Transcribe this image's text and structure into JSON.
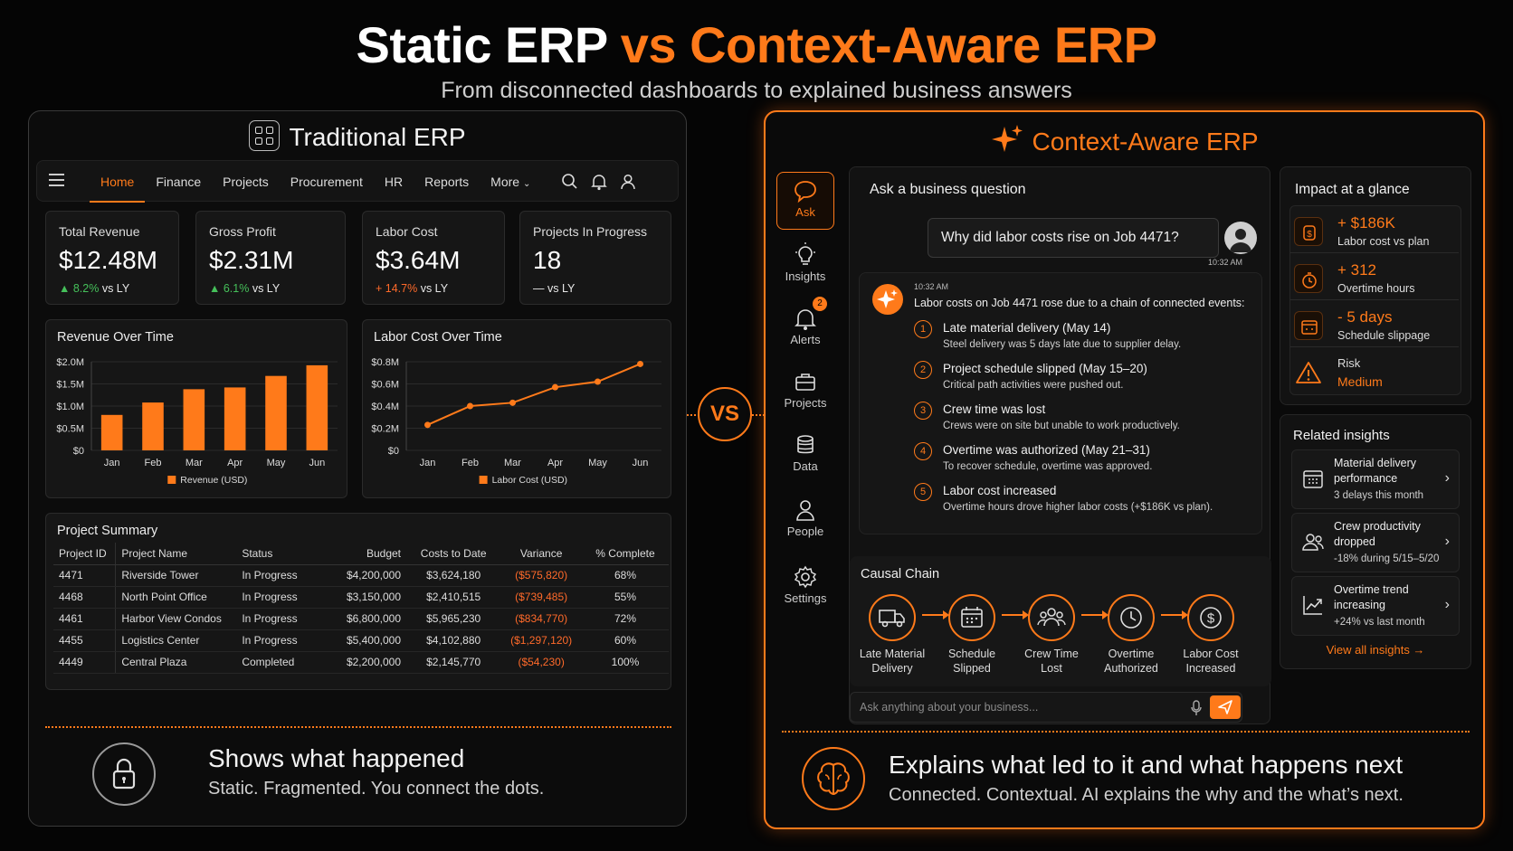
{
  "header": {
    "title_left": "Static ERP",
    "title_vs": "vs",
    "title_right": "Context-Aware ERP",
    "subtitle": "From disconnected dashboards to explained business answers"
  },
  "left": {
    "title": "Traditional ERP",
    "nav": [
      "Home",
      "Finance",
      "Projects",
      "Procurement",
      "HR",
      "Reports",
      "More"
    ],
    "nav_active": "Home",
    "kpis": [
      {
        "label": "Total Revenue",
        "value": "$12.48M",
        "change": "▲ 8.2%",
        "suffix": " vs LY"
      },
      {
        "label": "Gross Profit",
        "value": "$2.31M",
        "change": "▲ 6.1%",
        "suffix": " vs LY"
      },
      {
        "label": "Labor Cost",
        "value": "$3.64M",
        "change": "+ 14.7%",
        "suffix": " vs LY"
      },
      {
        "label": "Projects In Progress",
        "value": "18",
        "change": "—",
        "suffix": " vs LY"
      }
    ],
    "revenue_chart": {
      "title": "Revenue Over Time",
      "legend": "Revenue (USD)"
    },
    "labor_chart": {
      "title": "Labor Cost Over Time",
      "legend": "Labor Cost (USD)"
    },
    "project_summary": {
      "title": "Project Summary",
      "columns": [
        "Project ID",
        "Project Name",
        "Status",
        "Budget",
        "Costs to Date",
        "Variance",
        "% Complete"
      ],
      "rows": [
        [
          "4471",
          "Riverside Tower",
          "In Progress",
          "$4,200,000",
          "$3,624,180",
          "($575,820)",
          "68%"
        ],
        [
          "4468",
          "North Point Office",
          "In Progress",
          "$3,150,000",
          "$2,410,515",
          "($739,485)",
          "55%"
        ],
        [
          "4461",
          "Harbor View Condos",
          "In Progress",
          "$6,800,000",
          "$5,965,230",
          "($834,770)",
          "72%"
        ],
        [
          "4455",
          "Logistics Center",
          "In Progress",
          "$5,400,000",
          "$4,102,880",
          "($1,297,120)",
          "60%"
        ],
        [
          "4449",
          "Central Plaza",
          "Completed",
          "$2,200,000",
          "$2,145,770",
          "($54,230)",
          "100%"
        ]
      ]
    },
    "bottom_title": "Shows what happened",
    "bottom_sub": "Static. Fragmented. You connect the dots."
  },
  "vs": "VS",
  "right": {
    "title": "Context-Aware ERP",
    "sidebar": [
      {
        "label": "Ask",
        "icon": "chat-icon"
      },
      {
        "label": "Insights",
        "icon": "lightbulb-icon"
      },
      {
        "label": "Alerts",
        "icon": "bell-icon",
        "badge": "2"
      },
      {
        "label": "Projects",
        "icon": "briefcase-icon"
      },
      {
        "label": "Data",
        "icon": "database-icon"
      },
      {
        "label": "People",
        "icon": "person-icon"
      },
      {
        "label": "Settings",
        "icon": "gear-icon"
      }
    ],
    "ask": {
      "title": "Ask a business question",
      "question": "Why did labor costs rise on Job 4471?",
      "q_time": "10:32 AM",
      "a_time": "10:32 AM",
      "answer_intro": "Labor costs on Job 4471 rose due to a chain of connected events:",
      "steps": [
        {
          "n": "1",
          "h": "Late material delivery (May 14)",
          "d": "Steel delivery was 5 days late due to supplier delay."
        },
        {
          "n": "2",
          "h": "Project schedule slipped (May 15–20)",
          "d": "Critical path activities were pushed out."
        },
        {
          "n": "3",
          "h": "Crew time was lost",
          "d": "Crews were on site but unable to work productively."
        },
        {
          "n": "4",
          "h": "Overtime was authorized (May 21–31)",
          "d": "To recover schedule, overtime was approved."
        },
        {
          "n": "5",
          "h": "Labor cost increased",
          "d": "Overtime hours drove higher labor costs (+$186K vs plan)."
        }
      ],
      "causal_title": "Causal Chain",
      "causal": [
        {
          "l1": "Late Material",
          "l2": "Delivery",
          "icon": "truck-icon"
        },
        {
          "l1": "Schedule",
          "l2": "Slipped",
          "icon": "calendar-icon"
        },
        {
          "l1": "Crew Time",
          "l2": "Lost",
          "icon": "crew-icon"
        },
        {
          "l1": "Overtime",
          "l2": "Authorized",
          "icon": "clock-icon"
        },
        {
          "l1": "Labor Cost",
          "l2": "Increased",
          "icon": "dollar-icon"
        }
      ],
      "input_placeholder": "Ask anything about your business..."
    },
    "impact": {
      "title": "Impact at a glance",
      "items": [
        {
          "value": "+ $186K",
          "label": "Labor cost vs plan",
          "icon": "money-icon"
        },
        {
          "value": "+ 312",
          "label": "Overtime hours",
          "icon": "stopwatch-icon"
        },
        {
          "value": "- 5 days",
          "label": "Schedule slippage",
          "icon": "calendar-icon"
        },
        {
          "value": "Medium",
          "label": "Risk",
          "icon": "warning-icon"
        }
      ]
    },
    "insights": {
      "title": "Related insights",
      "items": [
        {
          "t1": "Material delivery performance",
          "t2": "3 delays this month",
          "icon": "calendar-grid-icon"
        },
        {
          "t1": "Crew productivity dropped",
          "t2": "-18% during 5/15–5/20",
          "icon": "people-icon"
        },
        {
          "t1": "Overtime trend increasing",
          "t2": "+24% vs last month",
          "icon": "trend-chart-icon"
        }
      ],
      "link": "View all insights →"
    },
    "bottom_title": "Explains what led to it and what happens next",
    "bottom_sub": "Connected. Contextual. AI explains the why and the what’s next."
  },
  "colors": {
    "accent": "#ff7a1a",
    "positive": "#45c05a",
    "negative": "#ff6a2a",
    "background": "#050505"
  },
  "chart_data": [
    {
      "type": "bar",
      "title": "Revenue Over Time",
      "categories": [
        "Jan",
        "Feb",
        "Mar",
        "Apr",
        "May",
        "Jun"
      ],
      "series": [
        {
          "name": "Revenue (USD)",
          "values": [
            0.8,
            1.08,
            1.38,
            1.42,
            1.68,
            1.92
          ]
        }
      ],
      "y_ticks": [
        "$0",
        "$0.5M",
        "$1.0M",
        "$1.5M",
        "$2.0M"
      ],
      "ylim": [
        0,
        2.0
      ]
    },
    {
      "type": "line",
      "title": "Labor Cost Over Time",
      "categories": [
        "Jan",
        "Feb",
        "Mar",
        "Apr",
        "May",
        "Jun"
      ],
      "series": [
        {
          "name": "Labor Cost (USD)",
          "values": [
            0.23,
            0.4,
            0.43,
            0.57,
            0.62,
            0.78
          ]
        }
      ],
      "y_ticks": [
        "$0",
        "$0.2M",
        "$0.4M",
        "$0.6M",
        "$0.8M"
      ],
      "ylim": [
        0,
        0.8
      ]
    }
  ]
}
